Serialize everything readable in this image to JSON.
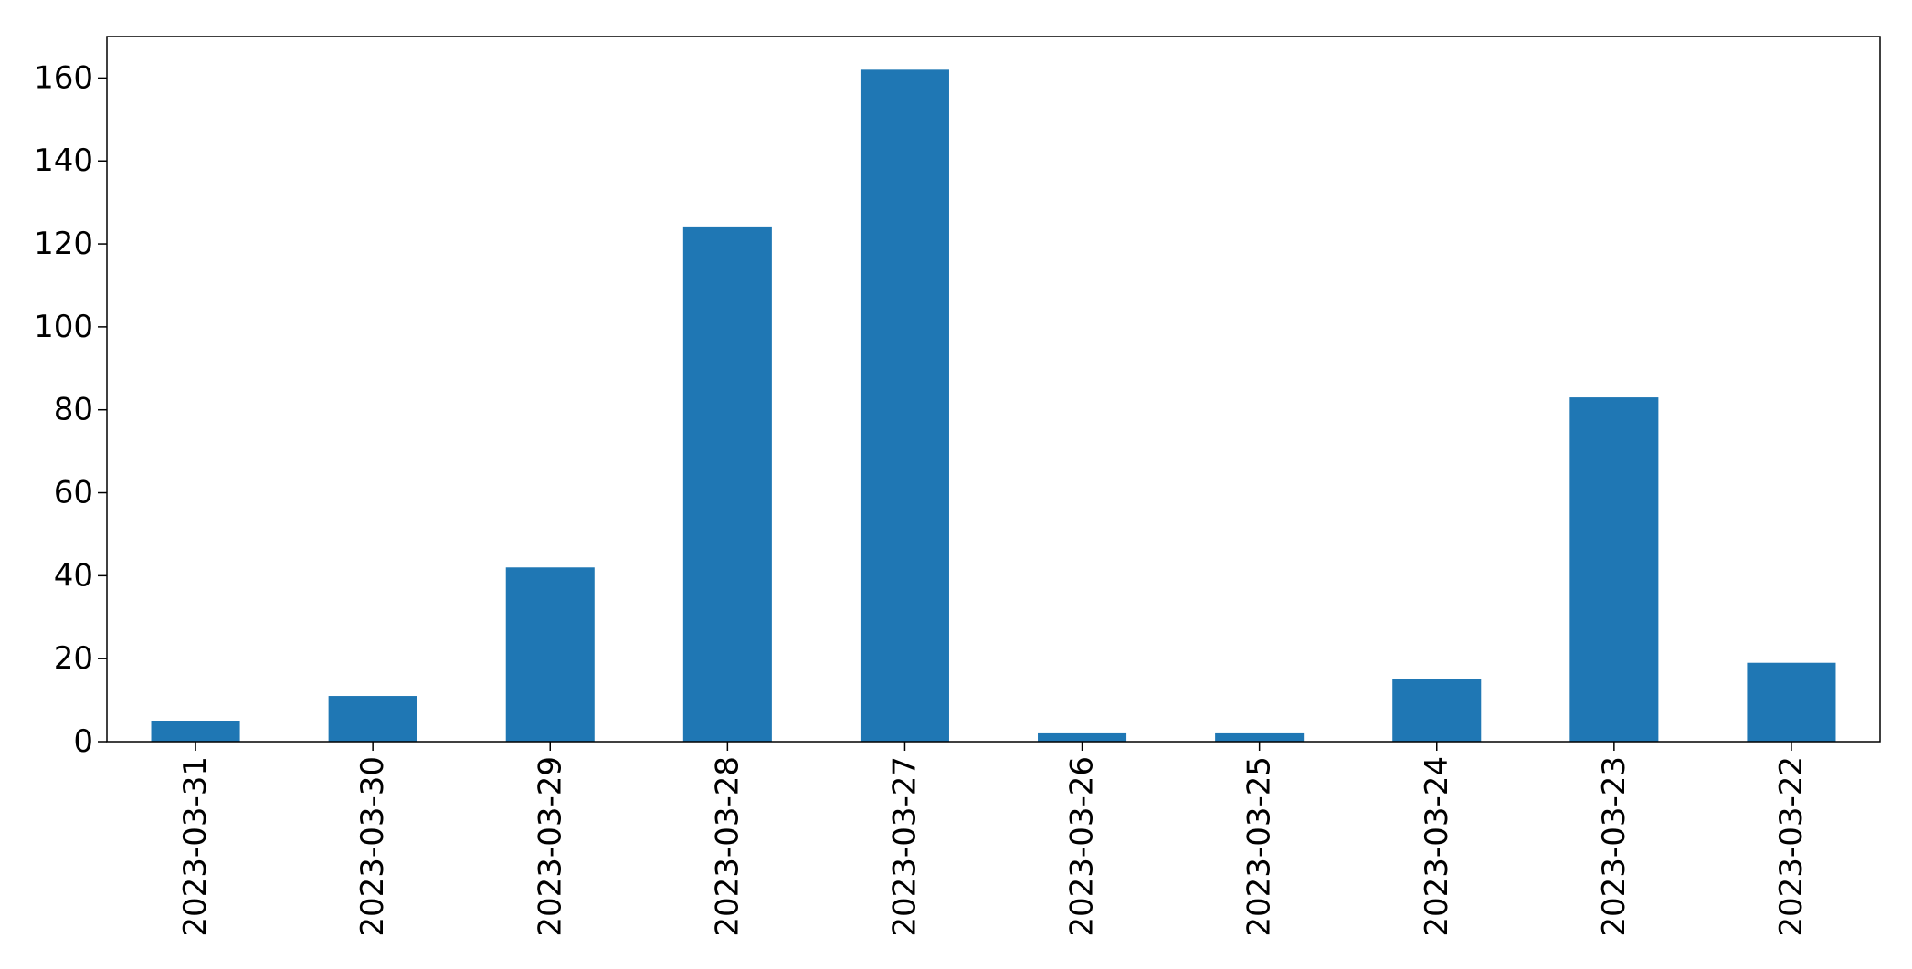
{
  "chart_data": {
    "type": "bar",
    "title": "",
    "xlabel": "",
    "ylabel": "",
    "categories": [
      "2023-03-31",
      "2023-03-30",
      "2023-03-29",
      "2023-03-28",
      "2023-03-27",
      "2023-03-26",
      "2023-03-25",
      "2023-03-24",
      "2023-03-23",
      "2023-03-22"
    ],
    "values": [
      5,
      11,
      42,
      124,
      162,
      2,
      2,
      15,
      83,
      19
    ],
    "ylim": [
      0,
      170
    ],
    "yticks": [
      0,
      20,
      40,
      60,
      80,
      100,
      120,
      140,
      160
    ],
    "grid": false,
    "legend": "none",
    "bar_color": "#1f77b4"
  }
}
